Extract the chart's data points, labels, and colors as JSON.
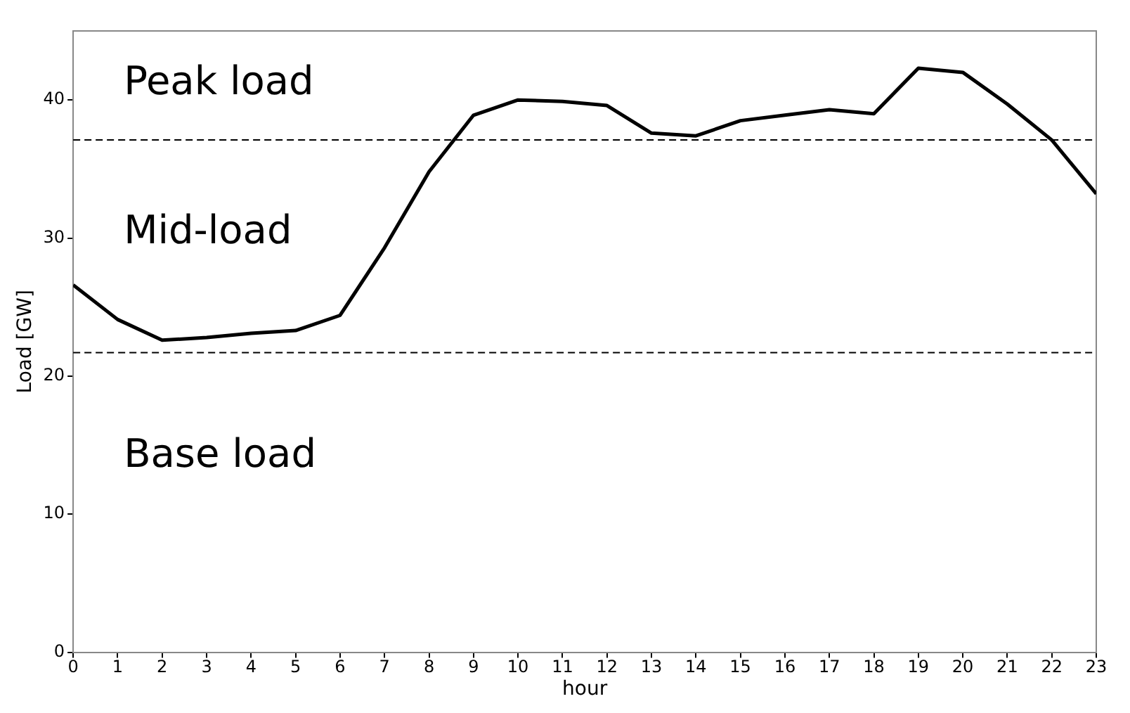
{
  "chart_data": {
    "type": "line",
    "xlabel": "hour",
    "ylabel": "Load [GW]",
    "x": [
      0,
      1,
      2,
      3,
      4,
      5,
      6,
      7,
      8,
      9,
      10,
      11,
      12,
      13,
      14,
      15,
      16,
      17,
      18,
      19,
      20,
      21,
      22,
      23
    ],
    "series": [
      {
        "color": "#000000",
        "values": [
          26.6,
          24.1,
          22.6,
          22.8,
          23.1,
          23.3,
          24.4,
          29.3,
          34.8,
          38.9,
          40.0,
          39.9,
          39.6,
          37.6,
          37.4,
          38.5,
          38.9,
          39.3,
          39.0,
          42.3,
          42.0,
          39.7,
          37.1,
          33.2
        ]
      }
    ],
    "xlim": [
      0,
      23
    ],
    "xticks": [
      0,
      1,
      2,
      3,
      4,
      5,
      6,
      7,
      8,
      9,
      10,
      11,
      12,
      13,
      14,
      15,
      16,
      17,
      18,
      19,
      20,
      21,
      22,
      23
    ],
    "ylim": [
      0,
      45
    ],
    "yticks": [
      0,
      10,
      20,
      30,
      40
    ],
    "ref_lines": [
      {
        "axis": "y",
        "value": 37.1,
        "color": "#000000",
        "line_style": "dashed"
      },
      {
        "axis": "y",
        "value": 21.7,
        "color": "#000000",
        "line_style": "dashed"
      }
    ],
    "annotations": [
      "Peak load",
      "Mid-load",
      "Base load"
    ],
    "grid": false,
    "legend": false,
    "marker": "none",
    "line_style": "solid"
  }
}
